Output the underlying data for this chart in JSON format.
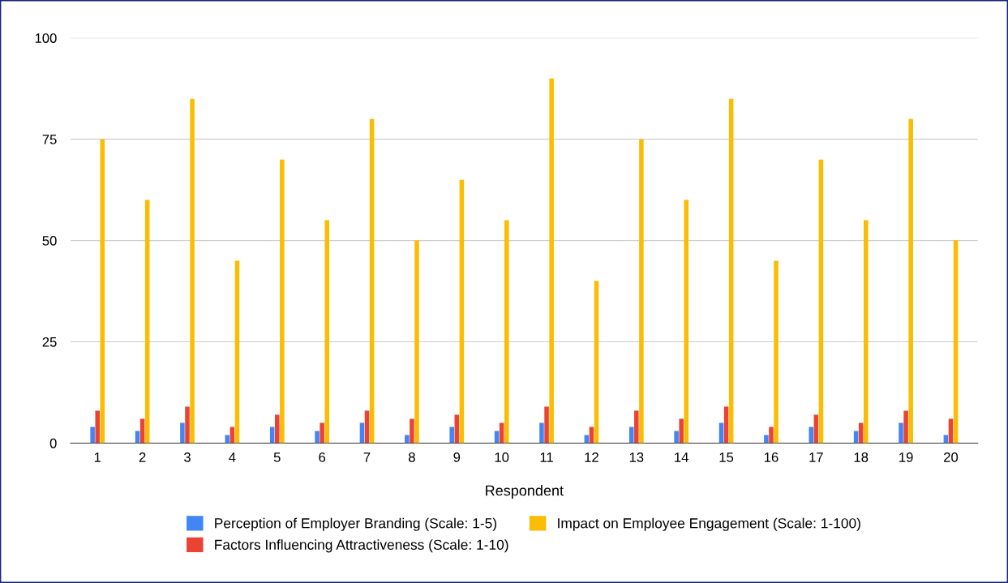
{
  "chart_data": {
    "type": "bar",
    "xlabel": "Respondent",
    "categories": [
      "1",
      "2",
      "3",
      "4",
      "5",
      "6",
      "7",
      "8",
      "9",
      "10",
      "11",
      "12",
      "13",
      "14",
      "15",
      "16",
      "17",
      "18",
      "19",
      "20"
    ],
    "series": [
      {
        "name": "Perception of Employer Branding (Scale: 1-5)",
        "color": "#4285f4",
        "values": [
          4,
          3,
          5,
          2,
          4,
          3,
          5,
          2,
          4,
          3,
          5,
          2,
          4,
          3,
          5,
          2,
          4,
          3,
          5,
          2
        ]
      },
      {
        "name": "Factors Influencing Attractiveness (Scale: 1-10)",
        "color": "#ea4335",
        "values": [
          8,
          6,
          9,
          4,
          7,
          5,
          8,
          6,
          7,
          5,
          9,
          4,
          8,
          6,
          9,
          4,
          7,
          5,
          8,
          6
        ]
      },
      {
        "name": "Impact on Employee Engagement (Scale: 1-100)",
        "color": "#fbbc04",
        "values": [
          75,
          60,
          85,
          45,
          70,
          55,
          80,
          50,
          65,
          55,
          90,
          40,
          75,
          60,
          85,
          45,
          70,
          55,
          80,
          50
        ]
      }
    ],
    "ylim": [
      0,
      100
    ],
    "yticks": [
      0,
      25,
      50,
      75,
      100
    ],
    "grid": "y",
    "legend": "bottom"
  }
}
